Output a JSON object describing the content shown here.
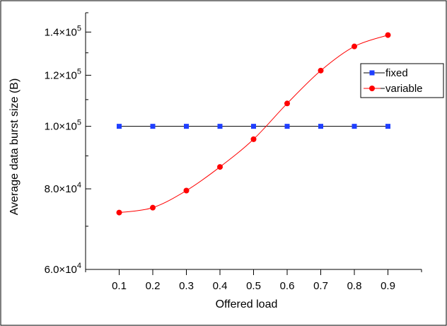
{
  "chart_data": {
    "type": "line",
    "xlabel": "Offered load",
    "ylabel": "Average data burst size (B)",
    "x": [
      0.1,
      0.2,
      0.3,
      0.4,
      0.5,
      0.6,
      0.7,
      0.8,
      0.9
    ],
    "x_tick_labels": [
      "0.1",
      "0.2",
      "0.3",
      "0.4",
      "0.5",
      "0.6",
      "0.7",
      "0.8",
      "0.9"
    ],
    "xlim": [
      0,
      1
    ],
    "ylim": [
      60000,
      150000
    ],
    "y_scale": "log",
    "y_ticks": [
      60000,
      80000,
      100000,
      120000,
      140000
    ],
    "y_tick_labels": [
      {
        "mantissa": "6.0",
        "exponent": "4"
      },
      {
        "mantissa": "8.0",
        "exponent": "4"
      },
      {
        "mantissa": "1.0",
        "exponent": "5"
      },
      {
        "mantissa": "1.2",
        "exponent": "5"
      },
      {
        "mantissa": "1.4",
        "exponent": "5"
      }
    ],
    "times_sign": "×",
    "grid": false,
    "legend_position": "top-right",
    "series": [
      {
        "name": "fixed",
        "marker": "square",
        "marker_color": "#1f3fff",
        "line_color": "#000000",
        "values": [
          100000,
          100000,
          100000,
          100000,
          100000,
          100000,
          100000,
          100000,
          100000
        ]
      },
      {
        "name": "variable",
        "marker": "circle",
        "marker_color": "#ff0000",
        "line_color": "#ff0000",
        "values": [
          73500,
          74800,
          79500,
          86500,
          95500,
          108500,
          122000,
          133000,
          138500
        ]
      }
    ]
  }
}
